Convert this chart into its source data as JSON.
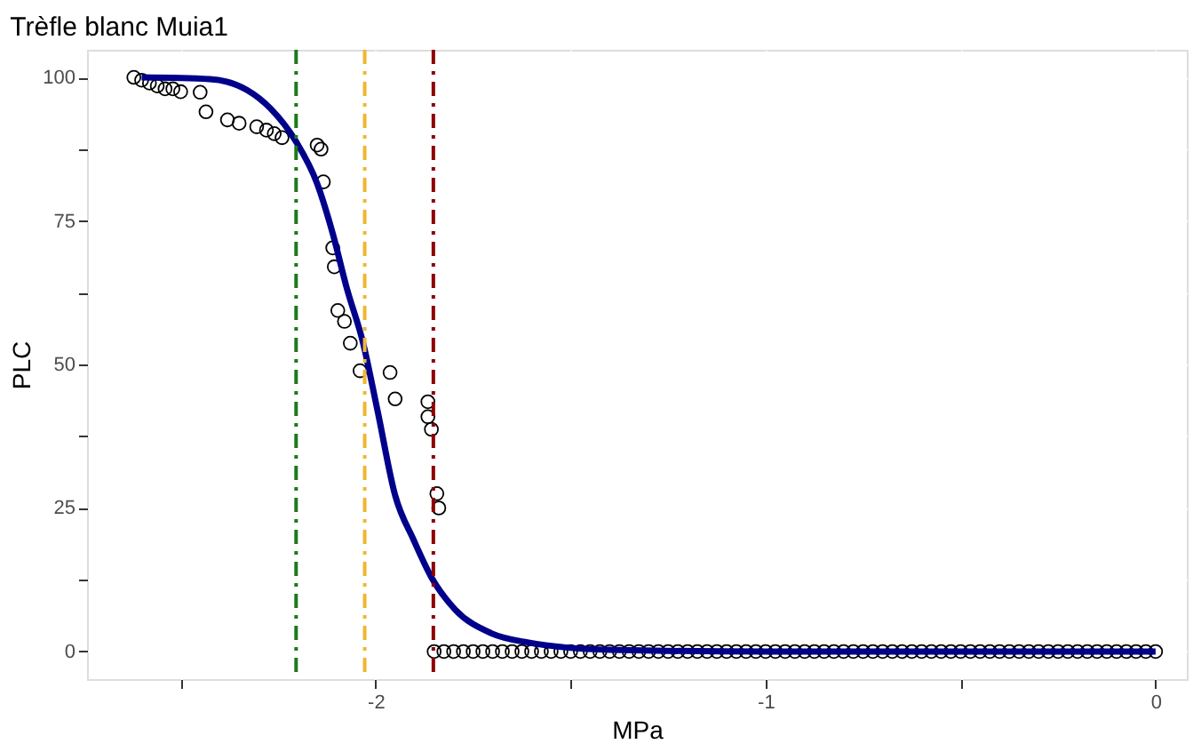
{
  "chart_data": {
    "type": "scatter",
    "title": "Trèfle blanc Muia1",
    "xlabel": "MPa",
    "ylabel": "PLC",
    "xlim": [
      -2.74,
      0.08
    ],
    "ylim": [
      -4.8,
      104.8
    ],
    "xticks": [
      {
        "value": -2.5,
        "label": null
      },
      -2,
      {
        "value": -1.5,
        "label": null
      },
      -1,
      {
        "value": -0.5,
        "label": null
      },
      0
    ],
    "yticks": [
      {
        "value": 12.5,
        "label": null
      },
      0,
      {
        "value": 37.5,
        "label": null
      },
      25,
      {
        "value": 62.5,
        "label": null
      },
      50,
      {
        "value": 87.5,
        "label": null
      },
      75,
      100
    ],
    "grid": true,
    "legend": false,
    "marker": "circle",
    "series": [
      {
        "color": "#000000",
        "x": [
          -2.62,
          -2.6,
          -2.58,
          -2.56,
          -2.54,
          -2.52,
          -2.5,
          -2.45,
          -2.435,
          -2.38,
          -2.35,
          -2.305,
          -2.28,
          -2.26,
          -2.24,
          -2.15,
          -2.14,
          -2.134,
          -2.11,
          -2.106,
          -2.097,
          -2.08,
          -2.065,
          -2.04,
          -1.963,
          -1.95,
          -1.866,
          -1.866,
          -1.857,
          -1.843,
          -1.838,
          -1.85,
          -1.825,
          -1.8,
          -1.775,
          -1.75,
          -1.725,
          -1.7,
          -1.675,
          -1.65,
          -1.625,
          -1.6,
          -1.575,
          -1.55,
          -1.525,
          -1.5,
          -1.475,
          -1.45,
          -1.425,
          -1.4,
          -1.375,
          -1.35,
          -1.325,
          -1.3,
          -1.275,
          -1.25,
          -1.225,
          -1.2,
          -1.175,
          -1.15,
          -1.125,
          -1.1,
          -1.075,
          -1.05,
          -1.025,
          -1.0,
          -0.975,
          -0.95,
          -0.925,
          -0.9,
          -0.875,
          -0.85,
          -0.825,
          -0.8,
          -0.775,
          -0.75,
          -0.725,
          -0.7,
          -0.675,
          -0.65,
          -0.625,
          -0.6,
          -0.575,
          -0.55,
          -0.525,
          -0.5,
          -0.475,
          -0.45,
          -0.425,
          -0.4,
          -0.375,
          -0.35,
          -0.325,
          -0.3,
          -0.275,
          -0.25,
          -0.225,
          -0.2,
          -0.175,
          -0.15,
          -0.125,
          -0.1,
          -0.075,
          -0.05,
          -0.025,
          0.0
        ],
        "values": [
          100,
          99.5,
          99,
          98.5,
          98,
          98,
          97.5,
          97.4,
          94,
          92.6,
          92,
          91.4,
          90.8,
          90.2,
          89.5,
          88.2,
          87.5,
          81.8,
          70.3,
          67,
          59.4,
          57.5,
          53.7,
          48.9,
          48.6,
          44,
          43.5,
          40.9,
          38.7,
          27.5,
          25,
          0,
          0,
          0,
          0,
          0,
          0,
          0,
          0,
          0,
          0,
          0,
          0,
          0,
          0,
          0,
          0,
          0,
          0,
          0,
          0,
          0,
          0,
          0,
          0,
          0,
          0,
          0,
          0,
          0,
          0,
          0,
          0,
          0,
          0,
          0,
          0,
          0,
          0,
          0,
          0,
          0,
          0,
          0,
          0,
          0,
          0,
          0,
          0,
          0,
          0,
          0,
          0,
          0,
          0,
          0,
          0,
          0,
          0,
          0,
          0,
          0,
          0,
          0,
          0,
          0,
          0,
          0,
          0,
          0,
          0,
          0,
          0,
          0,
          0,
          0
        ]
      },
      {
        "type": "line",
        "color": "#00008b",
        "line_style": "solid",
        "marker": "none",
        "x": [
          -2.6,
          -2.426,
          -2.33,
          -2.27,
          -2.204,
          -2.15,
          -2.11,
          -2.074,
          -2.032,
          -1.995,
          -1.95,
          -1.903,
          -1.856,
          -1.796,
          -1.704,
          -1.611,
          -1.4,
          -1.0,
          0.0
        ],
        "values": [
          100,
          99.7,
          97.8,
          94.6,
          88.8,
          81.5,
          72.8,
          63.3,
          53.7,
          41.9,
          27.2,
          19.5,
          12.8,
          7.3,
          3.2,
          1.6,
          0.3,
          0,
          0
        ]
      }
    ],
    "ref_lines": [
      {
        "axis": "x",
        "value": -2.204,
        "color": "#1a7a1a",
        "line_style": "dashed"
      },
      {
        "axis": "x",
        "value": -2.028,
        "color": "#f2b632",
        "line_style": "dashed"
      },
      {
        "axis": "x",
        "value": -1.852,
        "color": "#8b0000",
        "line_style": "dashed"
      }
    ]
  }
}
